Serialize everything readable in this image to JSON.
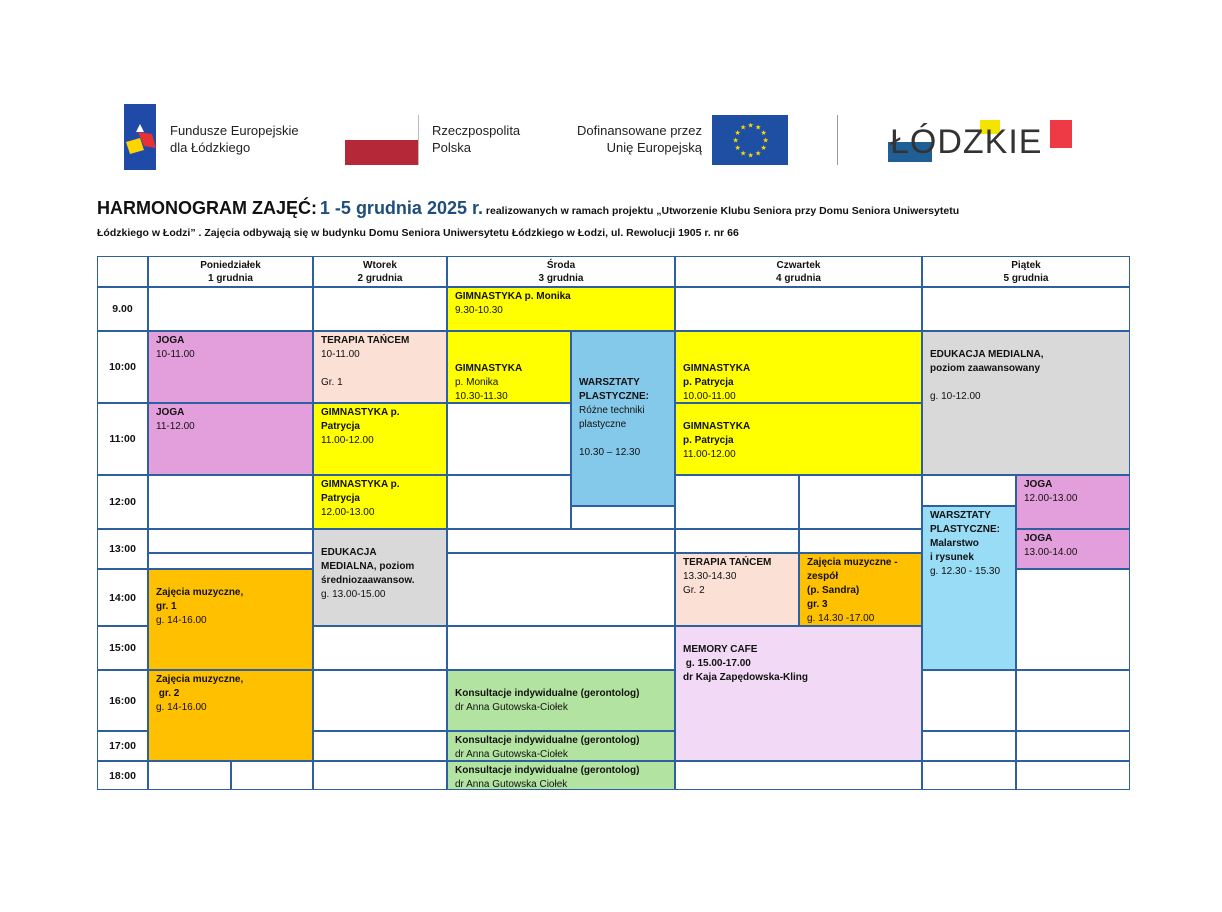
{
  "logos": {
    "fe": {
      "line1": "Fundusze Europejskie",
      "line2": "dla Łódzkiego"
    },
    "rp": {
      "line1": "Rzeczpospolita",
      "line2": "Polska"
    },
    "eu": {
      "line1": "Dofinansowane przez",
      "line2": "Unię Europejską"
    },
    "lodzkie": {
      "text": "ŁÓDZKIE"
    }
  },
  "title": {
    "main": "HARMONOGRAM ZAJĘĆ:",
    "dates": "1 -5 grudnia 2025 r.",
    "rest1": "realizowanych w ramach projektu  „Utworzenie Klubu Seniora przy Domu Seniora Uniwersytetu",
    "rest2": "Łódzkiego w Łodzi” . Zajęcia odbywają się w budynku Domu Seniora Uniwersytetu Łódzkiego w Łodzi, ul. Rewolucji 1905 r. nr 66"
  },
  "days": [
    {
      "name": "Poniedziałek",
      "date": "1 grudnia"
    },
    {
      "name": "Wtorek",
      "date": "2 grudnia"
    },
    {
      "name": "Środa",
      "date": "3 grudnia"
    },
    {
      "name": "Czwartek",
      "date": "4 grudnia"
    },
    {
      "name": "Piątek",
      "date": "5 grudnia"
    }
  ],
  "times": [
    "9.00",
    "10:00",
    "11:00",
    "12:00",
    "13:00",
    "14:00",
    "15:00",
    "16:00",
    "17:00",
    "18:00"
  ],
  "colors": {
    "grid": "#2e5f9e",
    "yellow": "#ffff00",
    "pink": "#e39fdb",
    "peach": "#fbe0d5",
    "blue": "#85c9ea",
    "lightblue": "#98dcf6",
    "grey": "#d9d9d9",
    "orange": "#ffc000",
    "lilac": "#f2d9f5",
    "green": "#b3e3a0"
  },
  "events": [
    {
      "day": "Środa",
      "color": "#ffff00",
      "lines": [
        {
          "text": "GIMNASTYKA p. Monika",
          "bold": true
        },
        {
          "text": "9.30-10.30"
        }
      ]
    },
    {
      "day": "Poniedziałek",
      "color": "#e39fdb",
      "lines": [
        {
          "text": ""
        },
        {
          "text": "JOGA",
          "bold": true
        },
        {
          "text": "10-11.00"
        }
      ]
    },
    {
      "day": "Poniedziałek",
      "color": "#e39fdb",
      "lines": [
        {
          "text": "JOGA",
          "bold": true
        },
        {
          "text": "11-12.00"
        }
      ]
    },
    {
      "day": "Wtorek",
      "color": "#fbe0d5",
      "lines": [
        {
          "text": "TERAPIA TAŃCEM",
          "bold": true
        },
        {
          "text": "10-11.00"
        },
        {
          "text": " "
        },
        {
          "text": "Gr. 1"
        }
      ]
    },
    {
      "day": "Wtorek",
      "color": "#ffff00",
      "lines": [
        {
          "text": "GIMNASTYKA p.",
          "bold": true
        },
        {
          "text": "Patrycja",
          "bold": true
        },
        {
          "text": "11.00-12.00"
        }
      ]
    },
    {
      "day": "Wtorek",
      "color": "#ffff00",
      "lines": [
        {
          "text": "GIMNASTYKA p.",
          "bold": true
        },
        {
          "text": "Patrycja",
          "bold": true
        },
        {
          "text": "12.00-13.00"
        }
      ]
    },
    {
      "day": "Środa",
      "color": "#ffff00",
      "lines": [
        {
          "text": " "
        },
        {
          "text": " "
        },
        {
          "text": "GIMNASTYKA",
          "bold": true
        },
        {
          "text": "p. Monika"
        },
        {
          "text": "10.30-11.30"
        }
      ]
    },
    {
      "day": "Środa",
      "color": "#85c9ea",
      "lines": [
        {
          "text": " "
        },
        {
          "text": " "
        },
        {
          "text": " "
        },
        {
          "text": "WARSZTATY",
          "bold": true
        },
        {
          "text": "PLASTYCZNE:",
          "bold": true
        },
        {
          "text": "Różne techniki"
        },
        {
          "text": "plastyczne"
        },
        {
          "text": " "
        },
        {
          "text": "10.30 – 12.30"
        }
      ]
    },
    {
      "day": "Czwartek",
      "color": "#ffff00",
      "lines": [
        {
          "text": " "
        },
        {
          "text": " "
        },
        {
          "text": "GIMNASTYKA",
          "bold": true
        },
        {
          "text": "p. Patrycja",
          "bold": true
        },
        {
          "text": "10.00-11.00"
        }
      ]
    },
    {
      "day": "Czwartek",
      "color": "#ffff00",
      "lines": [
        {
          "text": " "
        },
        {
          "text": "GIMNASTYKA",
          "bold": true
        },
        {
          "text": "p. Patrycja",
          "bold": true
        },
        {
          "text": "11.00-12.00"
        }
      ]
    },
    {
      "day": "Piątek",
      "color": "#d9d9d9",
      "lines": [
        {
          "text": " "
        },
        {
          "text": "EDUKACJA MEDIALNA,",
          "bold": true
        },
        {
          "text": "poziom zaawansowany",
          "bold": true
        },
        {
          "text": " "
        },
        {
          "text": "g. 10-12.00"
        }
      ]
    },
    {
      "day": "Piątek",
      "color": "#e39fdb",
      "lines": [
        {
          "text": "JOGA",
          "bold": true
        },
        {
          "text": "12.00-13.00"
        }
      ]
    },
    {
      "day": "Piątek",
      "color": "#e39fdb",
      "lines": [
        {
          "text": "JOGA",
          "bold": true
        },
        {
          "text": "13.00-14.00"
        }
      ]
    },
    {
      "day": "Piątek",
      "color": "#98dcf6",
      "lines": [
        {
          "text": "WARSZTATY",
          "bold": true
        },
        {
          "text": "PLASTYCZNE:",
          "bold": true
        },
        {
          "text": "Malarstwo",
          "bold": true
        },
        {
          "text": "i rysunek",
          "bold": true
        },
        {
          "text": "g. 12.30 - 15.30"
        }
      ]
    },
    {
      "day": "Wtorek",
      "color": "#d9d9d9",
      "lines": [
        {
          "text": " "
        },
        {
          "text": "EDUKACJA",
          "bold": true
        },
        {
          "text": "MEDIALNA, poziom",
          "bold": true
        },
        {
          "text": "średniozaawansow.",
          "bold": true
        },
        {
          "text": "g. 13.00-15.00"
        }
      ]
    },
    {
      "day": "Poniedziałek",
      "color": "#ffc000",
      "lines": [
        {
          "text": " "
        },
        {
          "text": "Zajęcia muzyczne,",
          "bold": true
        },
        {
          "text": "gr. 1",
          "bold": true
        },
        {
          "text": "g. 14-16.00"
        }
      ]
    },
    {
      "day": "Poniedziałek",
      "color": "#ffc000",
      "lines": [
        {
          "text": "Zajęcia muzyczne,",
          "bold": true
        },
        {
          "text": " gr. 2",
          "bold": true
        },
        {
          "text": "g. 14-16.00"
        }
      ]
    },
    {
      "day": "Czwartek",
      "color": "#fbe0d5",
      "lines": [
        {
          "text": "TERAPIA TAŃCEM",
          "bold": true
        },
        {
          "text": "13.30-14.30"
        },
        {
          "text": "Gr. 2"
        }
      ]
    },
    {
      "day": "Czwartek",
      "color": "#ffc000",
      "lines": [
        {
          "text": "Zajęcia muzyczne -",
          "bold": true
        },
        {
          "text": "zespół",
          "bold": true
        },
        {
          "text": "(p. Sandra)",
          "bold": true
        },
        {
          "text": "gr. 3",
          "bold": true
        },
        {
          "text": "g. 14.30 -17.00"
        }
      ]
    },
    {
      "day": "Czwartek",
      "color": "#f2d9f5",
      "lines": [
        {
          "text": " "
        },
        {
          "text": "MEMORY CAFE",
          "bold": true
        },
        {
          "text": " g. 15.00-17.00",
          "bold": true
        },
        {
          "text": "dr Kaja Zapędowska-Kling",
          "bold": true
        }
      ]
    },
    {
      "day": "Środa",
      "color": "#b3e3a0",
      "lines": [
        {
          "text": " "
        },
        {
          "text": "Konsultacje indywidualne (gerontolog)",
          "bold": true
        },
        {
          "text": "dr Anna Gutowska-Ciołek"
        }
      ]
    },
    {
      "day": "Środa",
      "color": "#b3e3a0",
      "lines": [
        {
          "text": "Konsultacje indywidualne (gerontolog)",
          "bold": true
        },
        {
          "text": "dr Anna Gutowska-Ciołek"
        }
      ]
    },
    {
      "day": "Środa",
      "color": "#b3e3a0",
      "lines": [
        {
          "text": "Konsultacje indywidualne (gerontolog)",
          "bold": true
        },
        {
          "text": "dr Anna Gutowska Ciołek"
        }
      ]
    }
  ]
}
